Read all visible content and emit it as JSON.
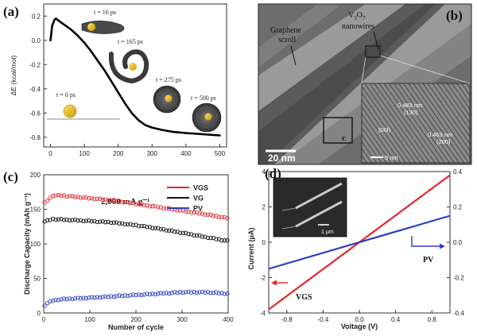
{
  "panels": {
    "a": {
      "label": "(a)",
      "ylabel": "ΔE (kcal/mol)",
      "snapshots": [
        "t = 16 ps",
        "t = 165 ps",
        "t = 275 ps",
        "t = 500 ps",
        "t = 0 ps"
      ]
    },
    "b": {
      "label": "(b)",
      "scroll_label": "Graphene scroll",
      "wire_label": "V3O7 nanowires",
      "scale_bar": "20 nm",
      "inset_letter": "c",
      "d1": "0.483 nm",
      "d1_plane": "(130)",
      "d2": "0.463 nm",
      "d2_plane": "(200)",
      "zone": "(00l)",
      "inset_scale": "5 nm"
    },
    "c": {
      "label": "(c)",
      "current_density": "2,000 mA g⁻¹",
      "ylabel": "Discharge Capacity  (mAh g⁻¹)",
      "xlabel": "Number of cycle"
    },
    "d": {
      "label": "(d)",
      "ylabel": "Current (μA)",
      "xlabel": "Voltage (V)",
      "vgs_label": "VGS",
      "pv_label": "PV",
      "sem_scale": "1 μm"
    }
  },
  "chart_data": [
    {
      "type": "line",
      "panel": "a",
      "xlabel": "",
      "ylabel": "ΔE (kcal/mol)",
      "xlim": [
        -20,
        520
      ],
      "ylim": [
        -0.88,
        0.3
      ],
      "xticks": [
        0,
        100,
        200,
        300,
        400,
        500
      ],
      "yticks": [
        0.2,
        0.0,
        -0.2,
        -0.4,
        -0.6,
        -0.8
      ],
      "series": [
        {
          "x": [
            0,
            5,
            12,
            16,
            25,
            40,
            60,
            80,
            100,
            120,
            140,
            160,
            180,
            200,
            220,
            240,
            260,
            280,
            300,
            330,
            360,
            400,
            450,
            500
          ],
          "y": [
            0.0,
            0.12,
            0.17,
            0.18,
            0.16,
            0.13,
            0.09,
            0.04,
            -0.02,
            -0.09,
            -0.17,
            -0.25,
            -0.34,
            -0.43,
            -0.52,
            -0.6,
            -0.66,
            -0.7,
            -0.72,
            -0.74,
            -0.755,
            -0.765,
            -0.775,
            -0.785
          ],
          "color": "#000000"
        }
      ],
      "reference_line": {
        "y": -0.65,
        "x": [
          -10,
          205
        ]
      }
    },
    {
      "type": "scatter",
      "panel": "c",
      "xlabel": "Number of cycle",
      "ylabel": "Discharge Capacity  (mAh g⁻¹)",
      "xlim": [
        0,
        400
      ],
      "ylim": [
        0,
        200
      ],
      "xticks": [
        0,
        100,
        200,
        300,
        400
      ],
      "yticks": [
        0,
        50,
        100,
        150,
        200
      ],
      "legend": "top-right",
      "series": [
        {
          "name": "VGS",
          "color": "#e8252c",
          "x": [
            0,
            20,
            40,
            100,
            150,
            200,
            250,
            300,
            350,
            400
          ],
          "y": [
            158,
            170,
            170,
            166,
            163,
            158,
            153,
            148,
            143,
            137
          ]
        },
        {
          "name": "VG",
          "color": "#111111",
          "x": [
            0,
            20,
            100,
            150,
            200,
            250,
            300,
            350,
            400
          ],
          "y": [
            132,
            136,
            133,
            131,
            127,
            122,
            116,
            110,
            104
          ]
        },
        {
          "name": "PV",
          "color": "#2a3fbf",
          "x": [
            0,
            10,
            20,
            40,
            100,
            150,
            200,
            250,
            300,
            350,
            400
          ],
          "y": [
            10,
            15,
            18,
            20,
            22,
            24,
            26,
            28,
            30,
            30,
            28
          ]
        }
      ]
    },
    {
      "type": "line",
      "panel": "d",
      "xlabel": "Voltage (V)",
      "ylabel": "Current (μA)",
      "xlim": [
        -1,
        1
      ],
      "ylim": [
        -4,
        4
      ],
      "y2lim": [
        -0.4,
        0.4
      ],
      "xticks": [
        -0.8,
        -0.4,
        0.0,
        0.4,
        0.8
      ],
      "yticks": [
        -4,
        -2,
        0,
        2,
        4
      ],
      "y2ticks": [
        -0.4,
        -0.2,
        0.0,
        0.2,
        0.4
      ],
      "series": [
        {
          "name": "VGS",
          "color": "#e8252c",
          "axis": "left",
          "x": [
            -1,
            1
          ],
          "y": [
            -3.8,
            3.8
          ]
        },
        {
          "name": "PV",
          "color": "#2a3fbf",
          "axis": "right",
          "x": [
            -1,
            1
          ],
          "y": [
            -0.15,
            0.15
          ]
        }
      ]
    }
  ]
}
